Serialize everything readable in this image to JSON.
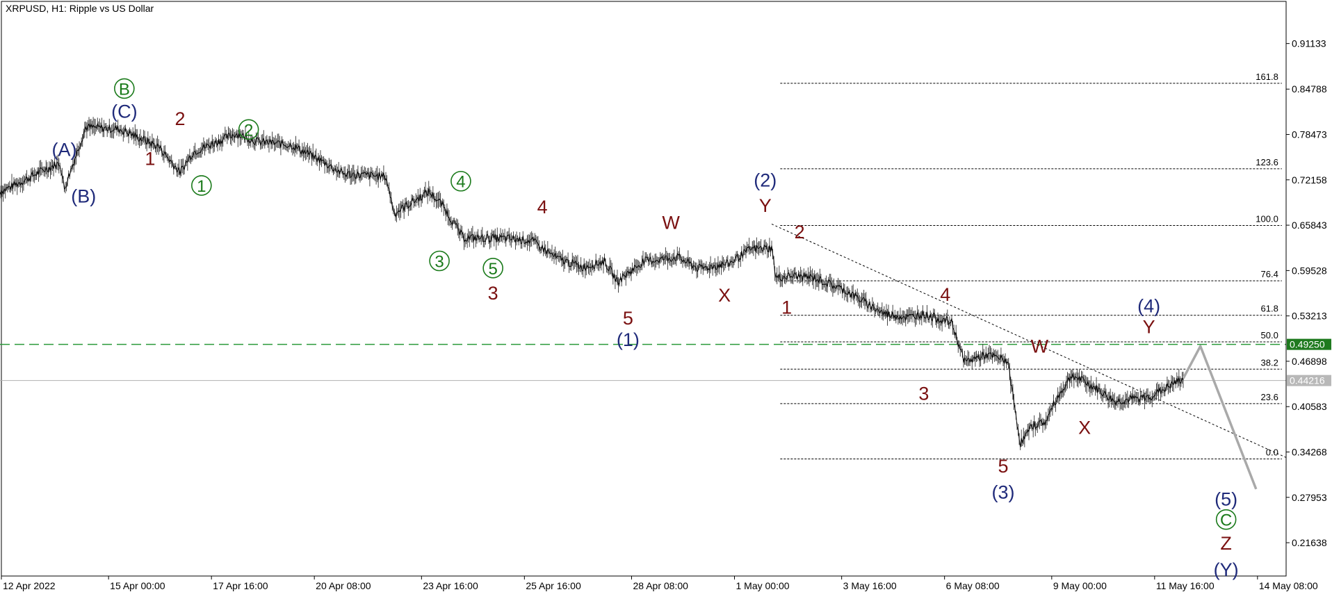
{
  "chart_data": {
    "type": "line",
    "title": "XRPUSD, H1:  Ripple vs US Dollar",
    "colors": {
      "price": "#000000",
      "green": "#1a7a1a",
      "navy": "#1f2a7a",
      "maroon": "#7a1010",
      "fib": "#000000",
      "projection": "#a9a9a9",
      "level_line": "#2a9a3a",
      "current_line": "#b0b0b0"
    },
    "y_ticks": [
      "0.91133",
      "0.84788",
      "0.78473",
      "0.72158",
      "0.65843",
      "0.59528",
      "0.53213",
      "0.46898",
      "0.40583",
      "0.34268",
      "0.27953",
      "0.21638"
    ],
    "x_ticks": [
      "12 Apr 2022",
      "15 Apr 00:00",
      "17 Apr 16:00",
      "20 Apr 08:00",
      "23 Apr 16:00",
      "25 Apr 16:00",
      "28 Apr 08:00",
      "1 May 00:00",
      "3 May 16:00",
      "6 May 08:00",
      "9 May 00:00",
      "11 May 16:00",
      "14 May 08:00"
    ],
    "ylim": [
      0.17,
      0.97
    ],
    "grid": false,
    "price_path": [
      [
        0,
        0.705
      ],
      [
        6,
        0.722
      ],
      [
        10,
        0.735
      ],
      [
        14,
        0.745
      ],
      [
        15,
        0.709
      ],
      [
        20,
        0.795
      ],
      [
        28,
        0.792
      ],
      [
        37,
        0.768
      ],
      [
        42,
        0.732
      ],
      [
        45,
        0.76
      ],
      [
        55,
        0.786
      ],
      [
        60,
        0.775
      ],
      [
        68,
        0.77
      ],
      [
        75,
        0.748
      ],
      [
        80,
        0.73
      ],
      [
        90,
        0.726
      ],
      [
        92,
        0.675
      ],
      [
        100,
        0.705
      ],
      [
        103,
        0.688
      ],
      [
        108,
        0.641
      ],
      [
        118,
        0.64
      ],
      [
        124,
        0.637
      ],
      [
        130,
        0.612
      ],
      [
        136,
        0.6
      ],
      [
        141,
        0.608
      ],
      [
        144,
        0.58
      ],
      [
        150,
        0.608
      ],
      [
        158,
        0.614
      ],
      [
        163,
        0.598
      ],
      [
        170,
        0.605
      ],
      [
        175,
        0.625
      ],
      [
        180,
        0.627
      ],
      [
        181,
        0.585
      ],
      [
        185,
        0.588
      ],
      [
        190,
        0.585
      ],
      [
        197,
        0.568
      ],
      [
        206,
        0.536
      ],
      [
        212,
        0.53
      ],
      [
        215,
        0.535
      ],
      [
        222,
        0.523
      ],
      [
        225,
        0.468
      ],
      [
        230,
        0.478
      ],
      [
        235,
        0.47
      ],
      [
        238,
        0.355
      ],
      [
        241,
        0.38
      ],
      [
        244,
        0.385
      ],
      [
        246,
        0.412
      ],
      [
        250,
        0.45
      ],
      [
        256,
        0.43
      ],
      [
        260,
        0.413
      ],
      [
        268,
        0.419
      ],
      [
        272,
        0.432
      ],
      [
        276,
        0.445
      ]
    ],
    "projection_path": [
      [
        276,
        0.445
      ],
      [
        280,
        0.49
      ],
      [
        293,
        0.291
      ]
    ],
    "fibonacci": {
      "levels": [
        {
          "label": "161.8",
          "value": 0.856
        },
        {
          "label": "123.6",
          "value": 0.737
        },
        {
          "label": "100.0",
          "value": 0.658
        },
        {
          "label": "76.4",
          "value": 0.581
        },
        {
          "label": "61.8",
          "value": 0.533
        },
        {
          "label": "50.0",
          "value": 0.496
        },
        {
          "label": "38.2",
          "value": 0.458
        },
        {
          "label": "23.6",
          "value": 0.41
        },
        {
          "label": "0.0",
          "value": 0.333
        }
      ],
      "x_start": 182,
      "x_end": 299
    },
    "trendline": {
      "x1": 180,
      "y1": 0.66,
      "x2": 300,
      "y2": 0.335
    },
    "horizontal_lines": [
      {
        "value": 0.4925,
        "label": "0.49250",
        "style": "dashed-green"
      },
      {
        "value": 0.44216,
        "label": "0.44216",
        "style": "solid-gray"
      }
    ],
    "wave_labels": [
      {
        "text": "B",
        "x": 29,
        "y": 0.84,
        "color": "green",
        "circled": true
      },
      {
        "text": "(C)",
        "x": 29,
        "y": 0.808,
        "color": "navy"
      },
      {
        "text": "(A)",
        "x": 15,
        "y": 0.755,
        "color": "navy"
      },
      {
        "text": "(B)",
        "x": 19.5,
        "y": 0.69,
        "color": "navy"
      },
      {
        "text": "1",
        "x": 35,
        "y": 0.742,
        "color": "maroon"
      },
      {
        "text": "2",
        "x": 42,
        "y": 0.798,
        "color": "maroon"
      },
      {
        "text": "1",
        "x": 47,
        "y": 0.705,
        "color": "green",
        "circled": true
      },
      {
        "text": "2",
        "x": 58,
        "y": 0.783,
        "color": "green",
        "circled": true
      },
      {
        "text": "4",
        "x": 107.5,
        "y": 0.711,
        "color": "green",
        "circled": true
      },
      {
        "text": "3",
        "x": 102.5,
        "y": 0.6,
        "color": "green",
        "circled": true
      },
      {
        "text": "5",
        "x": 115,
        "y": 0.59,
        "color": "green",
        "circled": true
      },
      {
        "text": "3",
        "x": 115,
        "y": 0.555,
        "color": "maroon"
      },
      {
        "text": "4",
        "x": 126.5,
        "y": 0.675,
        "color": "maroon"
      },
      {
        "text": "W",
        "x": 156.5,
        "y": 0.653,
        "color": "maroon"
      },
      {
        "text": "5",
        "x": 146.5,
        "y": 0.52,
        "color": "maroon"
      },
      {
        "text": "(1)",
        "x": 146.5,
        "y": 0.49,
        "color": "navy"
      },
      {
        "text": "X",
        "x": 169,
        "y": 0.552,
        "color": "maroon"
      },
      {
        "text": "(2)",
        "x": 178.5,
        "y": 0.712,
        "color": "navy"
      },
      {
        "text": "Y",
        "x": 178.5,
        "y": 0.677,
        "color": "maroon"
      },
      {
        "text": "2",
        "x": 186.5,
        "y": 0.64,
        "color": "maroon"
      },
      {
        "text": "1",
        "x": 183.5,
        "y": 0.535,
        "color": "maroon"
      },
      {
        "text": "4",
        "x": 220.5,
        "y": 0.553,
        "color": "maroon"
      },
      {
        "text": "3",
        "x": 215.5,
        "y": 0.415,
        "color": "maroon"
      },
      {
        "text": "W",
        "x": 242.5,
        "y": 0.481,
        "color": "maroon"
      },
      {
        "text": "X",
        "x": 253,
        "y": 0.368,
        "color": "maroon"
      },
      {
        "text": "5",
        "x": 234,
        "y": 0.314,
        "color": "maroon"
      },
      {
        "text": "(3)",
        "x": 234,
        "y": 0.278,
        "color": "navy"
      },
      {
        "text": "(4)",
        "x": 268,
        "y": 0.537,
        "color": "navy"
      },
      {
        "text": "Y",
        "x": 268,
        "y": 0.508,
        "color": "maroon"
      },
      {
        "text": "(5)",
        "x": 286,
        "y": 0.268,
        "color": "navy"
      },
      {
        "text": "C",
        "x": 286,
        "y": 0.24,
        "color": "green",
        "circled": true
      },
      {
        "text": "Z",
        "x": 286,
        "y": 0.207,
        "color": "maroon"
      },
      {
        "text": "(Y)",
        "x": 286,
        "y": 0.17,
        "color": "navy"
      }
    ]
  }
}
